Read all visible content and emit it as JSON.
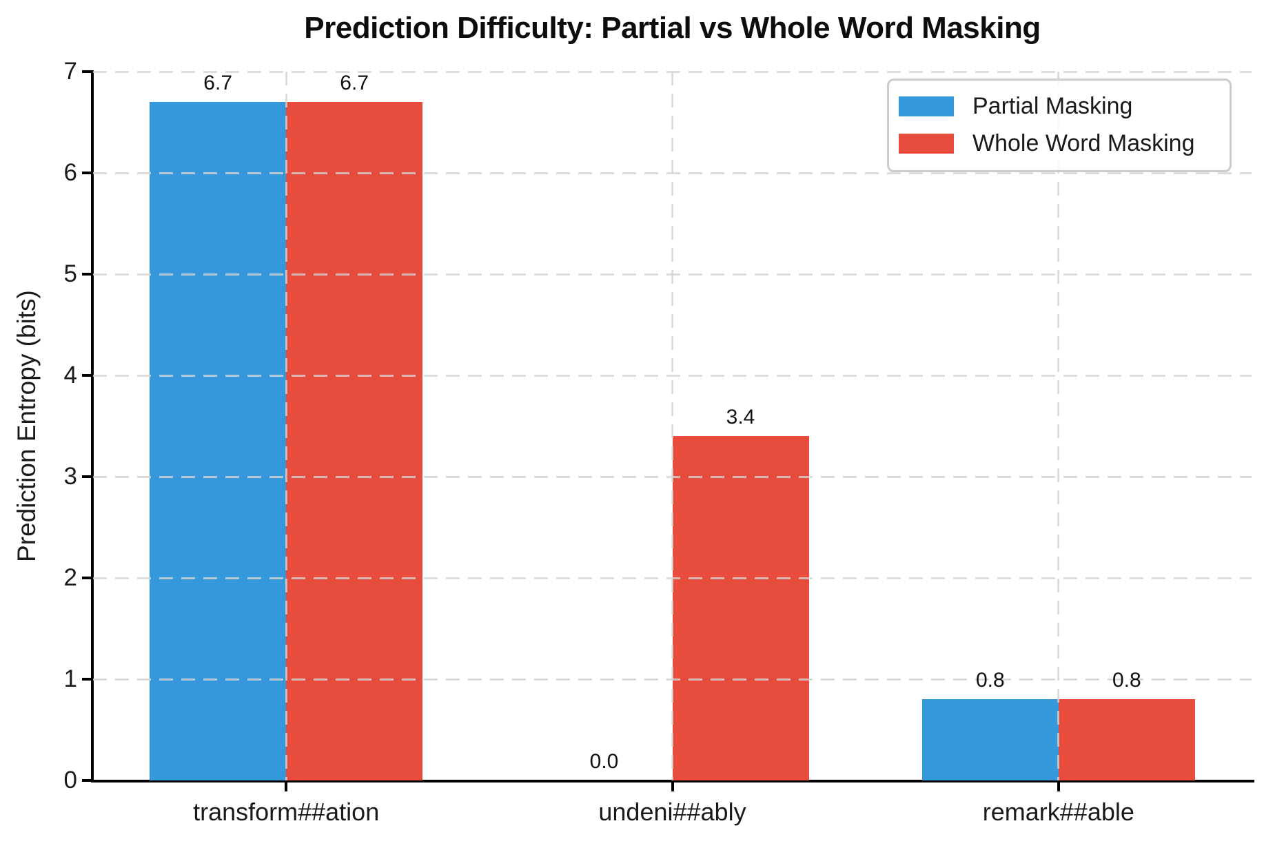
{
  "chart_data": {
    "type": "bar",
    "title": "Prediction Difficulty: Partial vs Whole Word Masking",
    "ylabel": "Prediction Entropy (bits)",
    "xlabel": "",
    "categories": [
      "transform##ation",
      "undeni##ably",
      "remark##able"
    ],
    "series": [
      {
        "name": "Partial Masking",
        "color": "#3498db",
        "values": [
          6.7,
          0.0,
          0.8
        ]
      },
      {
        "name": "Whole Word Masking",
        "color": "#e74c3c",
        "values": [
          6.7,
          3.4,
          0.8
        ]
      }
    ],
    "value_labels": [
      [
        "6.7",
        "0.0",
        "0.8"
      ],
      [
        "6.7",
        "3.4",
        "0.8"
      ]
    ],
    "ylim": [
      0,
      7
    ],
    "yticks": [
      0,
      1,
      2,
      3,
      4,
      5,
      6,
      7
    ],
    "grid": {
      "horizontal": true,
      "vertical": true,
      "style": "dashed",
      "color": "#d4d4d4"
    },
    "legend": {
      "position": "upper-right",
      "entries": [
        "Partial Masking",
        "Whole Word Masking"
      ]
    },
    "axis_color": "#000000",
    "text_color": "#1a1a1a"
  }
}
